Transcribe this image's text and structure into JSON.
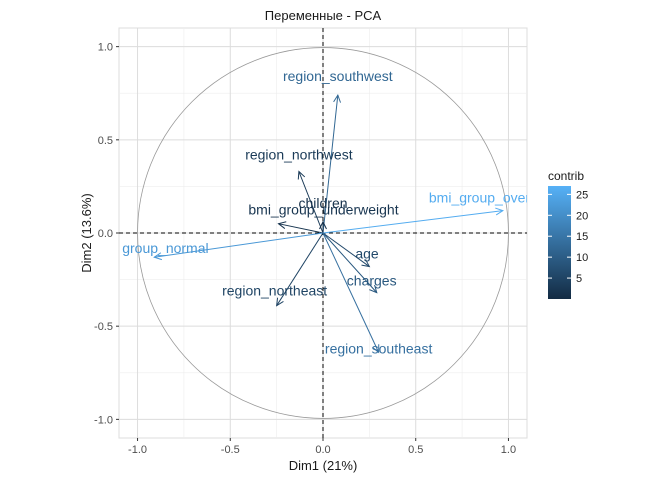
{
  "chart_data": {
    "type": "scatter",
    "title": "Переменные - PCA",
    "xlabel": "Dim1 (21%)",
    "ylabel": "Dim2 (13.6%)",
    "xlim": [
      -1.1,
      1.1
    ],
    "ylim": [
      -1.1,
      1.1
    ],
    "x_ticks": [
      -1.0,
      -0.5,
      0.0,
      0.5,
      1.0
    ],
    "y_ticks": [
      -1.0,
      -0.5,
      0.0,
      0.5,
      1.0
    ],
    "x_tick_labels": [
      "-1.0",
      "-0.5",
      "0.0",
      "0.5",
      "1.0"
    ],
    "y_tick_labels": [
      "1.0",
      "0.5",
      "0.0",
      "-0.5",
      "-1.0"
    ],
    "grid": true,
    "unit_circle": true,
    "variables": [
      {
        "name": "region_southwest",
        "x": 0.08,
        "y": 0.74,
        "contrib": 12
      },
      {
        "name": "region_northwest",
        "x": -0.13,
        "y": 0.33,
        "contrib": 3
      },
      {
        "name": "children",
        "x": 0.0,
        "y": 0.06,
        "contrib": 1
      },
      {
        "name": "bmi_group_underweight",
        "x": -0.24,
        "y": 0.05,
        "contrib": 2
      },
      {
        "name": "bmi_group_over",
        "x": 0.97,
        "y": 0.12,
        "contrib": 26
      },
      {
        "name": "group_normal",
        "x": -0.91,
        "y": -0.13,
        "contrib": 22
      },
      {
        "name": "age",
        "x": 0.25,
        "y": -0.18,
        "contrib": 6
      },
      {
        "name": "charges",
        "x": 0.29,
        "y": -0.32,
        "contrib": 9
      },
      {
        "name": "region_northeast",
        "x": -0.25,
        "y": -0.39,
        "contrib": 5
      },
      {
        "name": "region_southeast",
        "x": 0.3,
        "y": -0.64,
        "contrib": 14
      }
    ],
    "legend": {
      "title": "contrib",
      "placement": "right",
      "min": 0,
      "max": 27,
      "ticks": [
        5,
        10,
        15,
        20,
        25
      ],
      "tick_labels": [
        "5",
        "10",
        "15",
        "20",
        "25"
      ],
      "color_low": "#132B43",
      "color_high": "#56B1F7"
    }
  }
}
